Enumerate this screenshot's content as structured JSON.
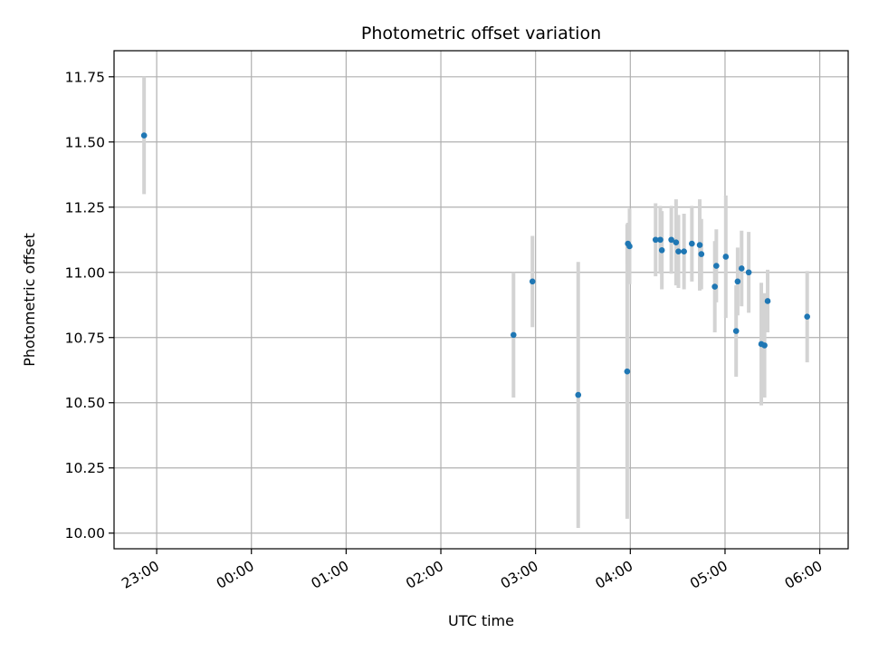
{
  "chart_data": {
    "type": "scatter",
    "title": "Photometric offset variation",
    "xlabel": "UTC time",
    "ylabel": "Photometric offset",
    "x_unit": "UTC time (hours after 22:00, previous evening)",
    "xlim": [
      0.55,
      8.3
    ],
    "ylim": [
      9.94,
      11.85
    ],
    "xticks": [
      {
        "value": 1,
        "label": "23:00"
      },
      {
        "value": 2,
        "label": "00:00"
      },
      {
        "value": 3,
        "label": "01:00"
      },
      {
        "value": 4,
        "label": "02:00"
      },
      {
        "value": 5,
        "label": "03:00"
      },
      {
        "value": 6,
        "label": "04:00"
      },
      {
        "value": 7,
        "label": "05:00"
      },
      {
        "value": 8,
        "label": "06:00"
      }
    ],
    "yticks": [
      {
        "value": 10.0,
        "label": "10.00"
      },
      {
        "value": 10.25,
        "label": "10.25"
      },
      {
        "value": 10.5,
        "label": "10.50"
      },
      {
        "value": 10.75,
        "label": "10.75"
      },
      {
        "value": 11.0,
        "label": "11.00"
      },
      {
        "value": 11.25,
        "label": "11.25"
      },
      {
        "value": 11.5,
        "label": "11.50"
      },
      {
        "value": 11.75,
        "label": "11.75"
      }
    ],
    "grid": true,
    "colors": {
      "points": "#1f77b4",
      "errorbars": "#d3d3d3",
      "grid": "#b0b0b0"
    },
    "points": [
      {
        "x": 0.867,
        "y": 11.525,
        "err": 0.225
      },
      {
        "x": 4.767,
        "y": 10.76,
        "err": 0.24
      },
      {
        "x": 4.967,
        "y": 10.965,
        "err": 0.175
      },
      {
        "x": 5.45,
        "y": 10.53,
        "err": 0.51
      },
      {
        "x": 5.967,
        "y": 10.62,
        "err": 0.565
      },
      {
        "x": 5.975,
        "y": 11.11,
        "err": 0.08
      },
      {
        "x": 5.992,
        "y": 11.1,
        "err": 0.145
      },
      {
        "x": 6.267,
        "y": 11.125,
        "err": 0.14
      },
      {
        "x": 6.317,
        "y": 11.125,
        "err": 0.13
      },
      {
        "x": 6.333,
        "y": 11.085,
        "err": 0.15
      },
      {
        "x": 6.433,
        "y": 11.125,
        "err": 0.13
      },
      {
        "x": 6.483,
        "y": 11.115,
        "err": 0.165
      },
      {
        "x": 6.508,
        "y": 11.08,
        "err": 0.14
      },
      {
        "x": 6.567,
        "y": 11.08,
        "err": 0.145
      },
      {
        "x": 6.65,
        "y": 11.11,
        "err": 0.145
      },
      {
        "x": 6.733,
        "y": 11.105,
        "err": 0.175
      },
      {
        "x": 6.75,
        "y": 11.07,
        "err": 0.135
      },
      {
        "x": 6.892,
        "y": 10.945,
        "err": 0.175
      },
      {
        "x": 6.908,
        "y": 11.025,
        "err": 0.14
      },
      {
        "x": 7.008,
        "y": 11.06,
        "err": 0.235
      },
      {
        "x": 7.117,
        "y": 10.775,
        "err": 0.175
      },
      {
        "x": 7.133,
        "y": 10.965,
        "err": 0.13
      },
      {
        "x": 7.175,
        "y": 11.015,
        "err": 0.145
      },
      {
        "x": 7.25,
        "y": 11.0,
        "err": 0.155
      },
      {
        "x": 7.383,
        "y": 10.725,
        "err": 0.235
      },
      {
        "x": 7.417,
        "y": 10.72,
        "err": 0.2
      },
      {
        "x": 7.45,
        "y": 10.89,
        "err": 0.12
      },
      {
        "x": 7.867,
        "y": 10.83,
        "err": 0.175
      }
    ]
  }
}
